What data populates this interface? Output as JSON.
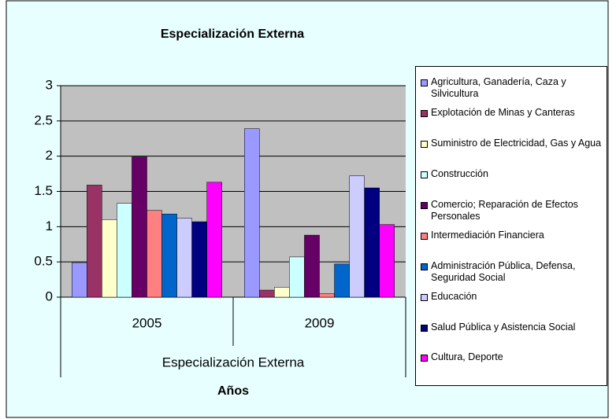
{
  "chart_data": {
    "type": "bar",
    "title": "Especialización Externa",
    "x_label": "Años",
    "x_group_label": "Especialización Externa",
    "categories": [
      "2005",
      "2009"
    ],
    "series": [
      {
        "name": "Agricultura, Ganadería, Caza y Silvicultura",
        "color": "#9999ff",
        "values": [
          0.49,
          2.39
        ]
      },
      {
        "name": "Explotación de Minas y Canteras",
        "color": "#993366",
        "values": [
          1.59,
          0.1
        ]
      },
      {
        "name": "Suministro de Electricidad, Gas y Agua",
        "color": "#ffffcc",
        "values": [
          1.1,
          0.14
        ]
      },
      {
        "name": "Construcción",
        "color": "#ccffff",
        "values": [
          1.33,
          0.57
        ]
      },
      {
        "name": "Comercio; Reparación de Efectos Personales",
        "color": "#660066",
        "values": [
          1.99,
          0.88
        ]
      },
      {
        "name": "Intermediación Financiera",
        "color": "#ff8080",
        "values": [
          1.23,
          0.05
        ]
      },
      {
        "name": "Administración Pública, Defensa, Seguridad Social",
        "color": "#0066cc",
        "values": [
          1.18,
          0.47
        ]
      },
      {
        "name": "Educación",
        "color": "#ccccff",
        "values": [
          1.12,
          1.72
        ]
      },
      {
        "name": "Salud Pública y Asistencia Social",
        "color": "#000080",
        "values": [
          1.07,
          1.55
        ]
      },
      {
        "name": "Cultura, Deporte",
        "color": "#ff00ff",
        "values": [
          1.63,
          1.03
        ]
      }
    ],
    "ylim": [
      0,
      3
    ],
    "yticks": [
      0,
      0.5,
      1,
      1.5,
      2,
      2.5,
      3
    ],
    "grid": true,
    "legend": "right"
  }
}
